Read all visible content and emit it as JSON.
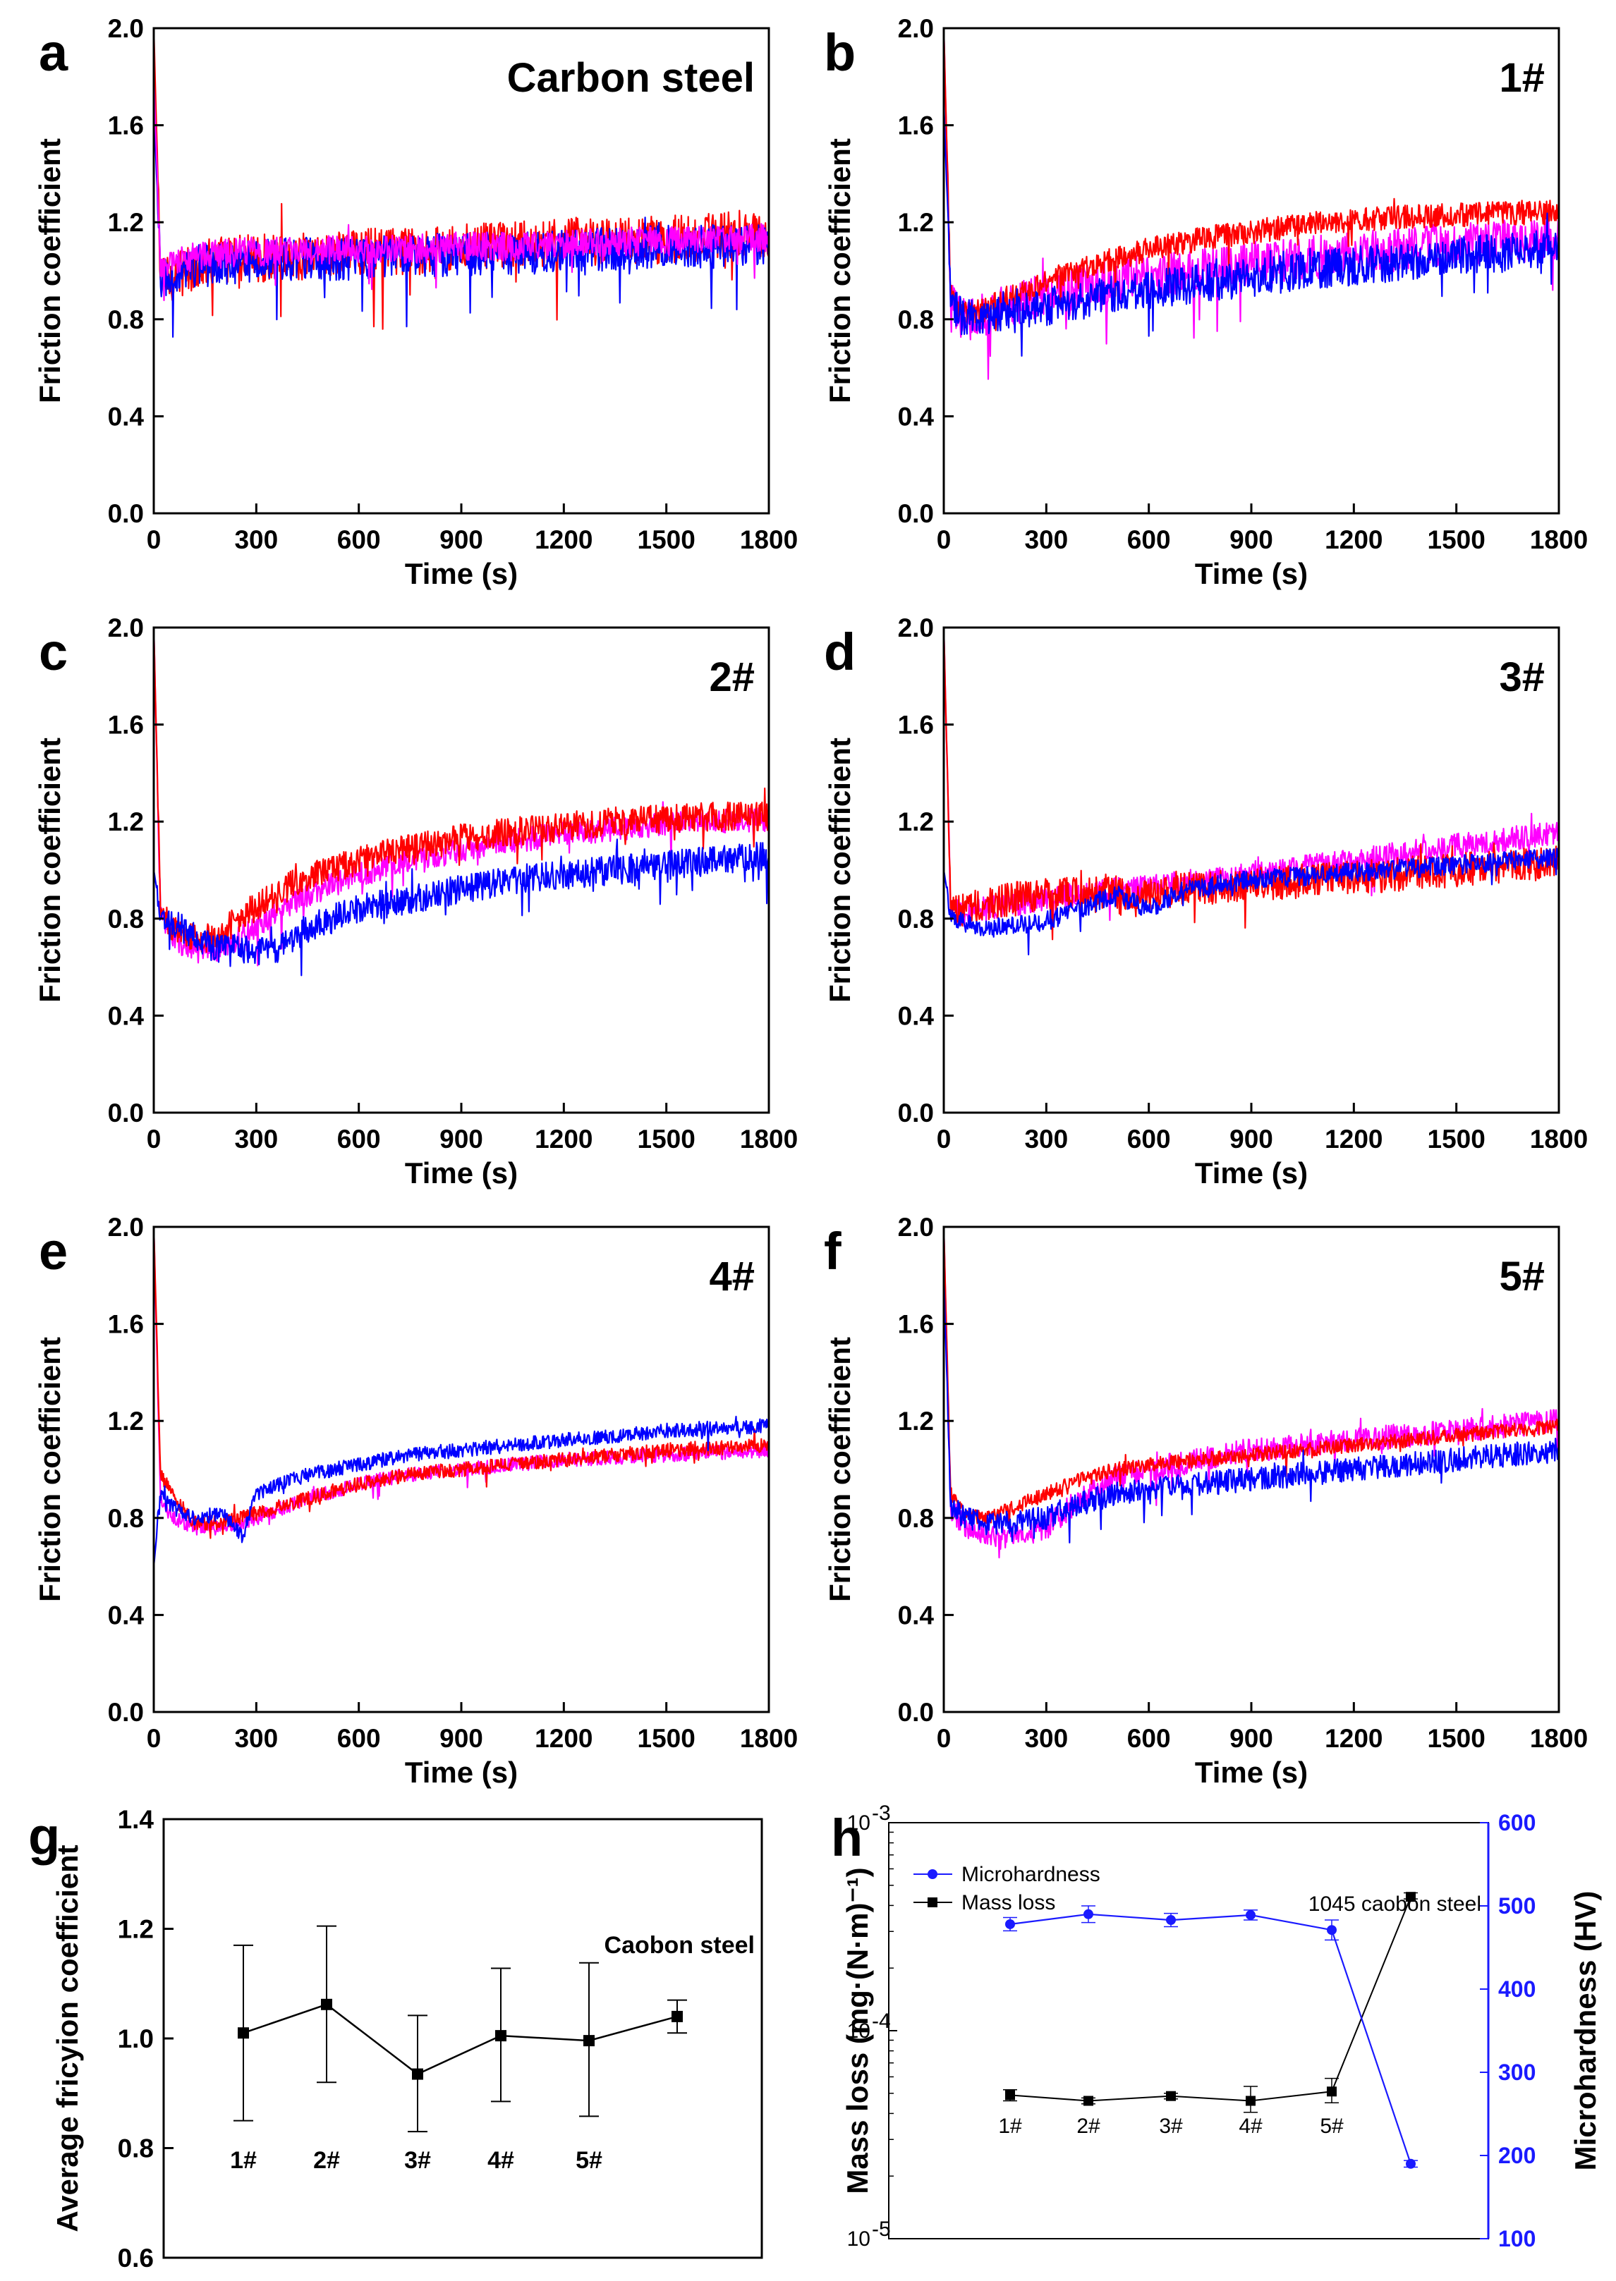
{
  "chart_data": [
    {
      "id": "a",
      "type": "line",
      "panel_label": "a",
      "sample_label": "Carbon steel",
      "xlabel": "Time (s)",
      "ylabel": "Friction coefficient",
      "xlim": [
        0,
        1800
      ],
      "ylim": [
        0,
        2.0
      ],
      "xticks": [
        "0",
        "300",
        "600",
        "900",
        "1200",
        "1500",
        "1800"
      ],
      "yticks": [
        "0.0",
        "0.4",
        "0.8",
        "1.2",
        "1.6",
        "2.0"
      ],
      "series": [
        {
          "color": "#ff0000",
          "x": [
            0,
            20,
            60,
            120,
            200,
            300,
            450,
            600,
            750,
            900,
            1050,
            1200,
            1350,
            1500,
            1650,
            1800
          ],
          "y": [
            2.0,
            0.95,
            0.98,
            1.02,
            1.05,
            1.05,
            1.06,
            1.08,
            1.08,
            1.1,
            1.1,
            1.12,
            1.12,
            1.13,
            1.14,
            1.16
          ],
          "noise": 0.1
        },
        {
          "color": "#0000ff",
          "x": [
            0,
            20,
            60,
            120,
            200,
            300,
            450,
            600,
            750,
            900,
            1050,
            1200,
            1350,
            1500,
            1650,
            1800
          ],
          "y": [
            1.7,
            0.95,
            1.0,
            1.02,
            1.03,
            1.04,
            1.05,
            1.05,
            1.06,
            1.07,
            1.07,
            1.08,
            1.09,
            1.1,
            1.1,
            1.1
          ],
          "noise": 0.09
        },
        {
          "color": "#ff00ff",
          "x": [
            0,
            20,
            60,
            120,
            200,
            300,
            450,
            600,
            750,
            900,
            1050,
            1200,
            1350,
            1500,
            1650,
            1800
          ],
          "y": [
            1.8,
            1.0,
            1.04,
            1.06,
            1.07,
            1.08,
            1.08,
            1.09,
            1.09,
            1.1,
            1.1,
            1.11,
            1.12,
            1.12,
            1.13,
            1.14
          ],
          "noise": 0.06
        }
      ]
    },
    {
      "id": "b",
      "type": "line",
      "panel_label": "b",
      "sample_label": "1#",
      "xlabel": "Time (s)",
      "ylabel": "Friction coefficient",
      "xlim": [
        0,
        1800
      ],
      "ylim": [
        0,
        2.0
      ],
      "xticks": [
        "0",
        "300",
        "600",
        "900",
        "1200",
        "1500",
        "1800"
      ],
      "yticks": [
        "0.0",
        "0.4",
        "0.8",
        "1.2",
        "1.6",
        "2.0"
      ],
      "series": [
        {
          "color": "#ff00ff",
          "x": [
            0,
            20,
            60,
            120,
            200,
            300,
            450,
            600,
            750,
            900,
            1050,
            1200,
            1350,
            1500,
            1650,
            1800
          ],
          "y": [
            2.0,
            0.86,
            0.8,
            0.82,
            0.86,
            0.9,
            0.95,
            0.98,
            1.0,
            1.03,
            1.05,
            1.07,
            1.09,
            1.11,
            1.12,
            1.13
          ],
          "noise": 0.09
        },
        {
          "color": "#ff0000",
          "x": [
            0,
            20,
            60,
            120,
            200,
            300,
            450,
            600,
            750,
            900,
            1050,
            1200,
            1350,
            1500,
            1650,
            1800
          ],
          "y": [
            2.0,
            0.9,
            0.82,
            0.84,
            0.9,
            0.96,
            1.03,
            1.09,
            1.13,
            1.16,
            1.19,
            1.21,
            1.22,
            1.23,
            1.24,
            1.24
          ],
          "noise": 0.05
        },
        {
          "color": "#0000ff",
          "x": [
            0,
            20,
            60,
            120,
            200,
            300,
            450,
            600,
            750,
            900,
            1050,
            1200,
            1350,
            1500,
            1650,
            1800
          ],
          "y": [
            1.7,
            0.88,
            0.8,
            0.8,
            0.82,
            0.85,
            0.89,
            0.92,
            0.95,
            0.97,
            1.0,
            1.02,
            1.04,
            1.06,
            1.08,
            1.1
          ],
          "noise": 0.08
        }
      ]
    },
    {
      "id": "c",
      "type": "line",
      "panel_label": "c",
      "sample_label": "2#",
      "xlabel": "Time (s)",
      "ylabel": "Friction coefficient",
      "xlim": [
        0,
        1800
      ],
      "ylim": [
        0,
        2.0
      ],
      "xticks": [
        "0",
        "300",
        "600",
        "900",
        "1200",
        "1500",
        "1800"
      ],
      "yticks": [
        "0.0",
        "0.4",
        "0.8",
        "1.2",
        "1.6",
        "2.0"
      ],
      "series": [
        {
          "color": "#ff00ff",
          "x": [
            0,
            20,
            60,
            120,
            180,
            250,
            350,
            450,
            600,
            750,
            900,
            1050,
            1200,
            1350,
            1500,
            1650,
            1800
          ],
          "y": [
            2.0,
            0.8,
            0.72,
            0.66,
            0.66,
            0.72,
            0.82,
            0.9,
            0.98,
            1.04,
            1.08,
            1.12,
            1.15,
            1.17,
            1.19,
            1.2,
            1.21
          ],
          "noise": 0.05
        },
        {
          "color": "#ff0000",
          "x": [
            0,
            20,
            60,
            120,
            180,
            250,
            350,
            450,
            600,
            750,
            900,
            1050,
            1200,
            1350,
            1500,
            1650,
            1800
          ],
          "y": [
            2.0,
            0.82,
            0.76,
            0.72,
            0.72,
            0.8,
            0.9,
            0.97,
            1.04,
            1.09,
            1.13,
            1.16,
            1.18,
            1.2,
            1.21,
            1.22,
            1.22
          ],
          "noise": 0.06
        },
        {
          "color": "#0000ff",
          "x": [
            0,
            20,
            60,
            120,
            180,
            250,
            350,
            450,
            600,
            750,
            900,
            1050,
            1200,
            1350,
            1500,
            1650,
            1800
          ],
          "y": [
            1.0,
            0.82,
            0.78,
            0.72,
            0.68,
            0.68,
            0.66,
            0.76,
            0.84,
            0.88,
            0.92,
            0.96,
            0.98,
            1.0,
            1.02,
            1.04,
            1.06
          ],
          "noise": 0.06
        }
      ]
    },
    {
      "id": "d",
      "type": "line",
      "panel_label": "d",
      "sample_label": "3#",
      "xlabel": "Time (s)",
      "ylabel": "Friction coefficient",
      "xlim": [
        0,
        1800
      ],
      "ylim": [
        0,
        2.0
      ],
      "xticks": [
        "0",
        "300",
        "600",
        "900",
        "1200",
        "1500",
        "1800"
      ],
      "yticks": [
        "0.0",
        "0.4",
        "0.8",
        "1.2",
        "1.6",
        "2.0"
      ],
      "series": [
        {
          "color": "#ff00ff",
          "x": [
            0,
            20,
            60,
            120,
            200,
            300,
            400,
            500,
            600,
            700,
            900,
            1100,
            1300,
            1500,
            1650,
            1800
          ],
          "y": [
            2.0,
            0.84,
            0.82,
            0.84,
            0.86,
            0.88,
            0.9,
            0.92,
            0.93,
            0.95,
            0.98,
            1.02,
            1.06,
            1.1,
            1.13,
            1.15
          ],
          "noise": 0.05
        },
        {
          "color": "#ff0000",
          "x": [
            0,
            20,
            60,
            120,
            200,
            300,
            400,
            500,
            600,
            700,
            900,
            1100,
            1300,
            1500,
            1650,
            1800
          ],
          "y": [
            2.0,
            0.84,
            0.84,
            0.86,
            0.88,
            0.9,
            0.9,
            0.91,
            0.9,
            0.92,
            0.94,
            0.96,
            0.98,
            1.0,
            1.02,
            1.03
          ],
          "noise": 0.07
        },
        {
          "color": "#0000ff",
          "x": [
            0,
            20,
            60,
            120,
            200,
            300,
            400,
            500,
            600,
            700,
            900,
            1100,
            1300,
            1500,
            1650,
            1800
          ],
          "y": [
            1.0,
            0.82,
            0.78,
            0.76,
            0.77,
            0.79,
            0.84,
            0.9,
            0.84,
            0.92,
            0.96,
            0.98,
            1.0,
            1.02,
            1.04,
            1.05
          ],
          "noise": 0.04
        }
      ]
    },
    {
      "id": "e",
      "type": "line",
      "panel_label": "e",
      "sample_label": "4#",
      "xlabel": "Time (s)",
      "ylabel": "Friction coefficient",
      "xlim": [
        0,
        1800
      ],
      "ylim": [
        0,
        2.0
      ],
      "xticks": [
        "0",
        "300",
        "600",
        "900",
        "1200",
        "1500",
        "1800"
      ],
      "yticks": [
        "0.0",
        "0.4",
        "0.8",
        "1.2",
        "1.6",
        "2.0"
      ],
      "series": [
        {
          "color": "#ff00ff",
          "x": [
            0,
            20,
            60,
            120,
            200,
            300,
            450,
            600,
            750,
            900,
            1050,
            1200,
            1350,
            1500,
            1650,
            1800
          ],
          "y": [
            2.0,
            0.86,
            0.8,
            0.76,
            0.76,
            0.8,
            0.88,
            0.94,
            0.98,
            1.0,
            1.02,
            1.04,
            1.05,
            1.06,
            1.07,
            1.08
          ],
          "noise": 0.03
        },
        {
          "color": "#ff0000",
          "x": [
            0,
            20,
            60,
            120,
            200,
            300,
            450,
            600,
            750,
            900,
            1050,
            1200,
            1350,
            1500,
            1650,
            1800
          ],
          "y": [
            2.0,
            0.98,
            0.88,
            0.78,
            0.78,
            0.82,
            0.88,
            0.94,
            0.98,
            1.0,
            1.02,
            1.04,
            1.06,
            1.08,
            1.09,
            1.1
          ],
          "noise": 0.03
        },
        {
          "color": "#0000ff",
          "x": [
            0,
            20,
            60,
            120,
            200,
            260,
            300,
            450,
            600,
            750,
            900,
            1050,
            1200,
            1350,
            1500,
            1650,
            1800
          ],
          "y": [
            0.6,
            0.9,
            0.84,
            0.8,
            0.82,
            0.72,
            0.9,
            0.98,
            1.02,
            1.06,
            1.08,
            1.1,
            1.12,
            1.14,
            1.16,
            1.17,
            1.18
          ],
          "noise": 0.03
        }
      ]
    },
    {
      "id": "f",
      "type": "line",
      "panel_label": "f",
      "sample_label": "5#",
      "xlabel": "Time (s)",
      "ylabel": "Friction coefficient",
      "xlim": [
        0,
        1800
      ],
      "ylim": [
        0,
        2.0
      ],
      "xticks": [
        "0",
        "300",
        "600",
        "900",
        "1200",
        "1500",
        "1800"
      ],
      "yticks": [
        "0.0",
        "0.4",
        "0.8",
        "1.2",
        "1.6",
        "2.0"
      ],
      "series": [
        {
          "color": "#ff00ff",
          "x": [
            0,
            20,
            60,
            120,
            200,
            300,
            400,
            500,
            600,
            750,
            900,
            1050,
            1200,
            1350,
            1500,
            1650,
            1800
          ],
          "y": [
            2.0,
            0.84,
            0.76,
            0.72,
            0.72,
            0.76,
            0.88,
            0.96,
            1.0,
            1.04,
            1.08,
            1.1,
            1.12,
            1.14,
            1.16,
            1.18,
            1.2
          ],
          "noise": 0.05
        },
        {
          "color": "#ff0000",
          "x": [
            0,
            20,
            60,
            120,
            200,
            300,
            400,
            500,
            600,
            750,
            900,
            1050,
            1200,
            1350,
            1500,
            1650,
            1800
          ],
          "y": [
            2.0,
            0.9,
            0.82,
            0.8,
            0.84,
            0.9,
            0.96,
            1.0,
            1.02,
            1.04,
            1.06,
            1.08,
            1.1,
            1.12,
            1.14,
            1.16,
            1.18
          ],
          "noise": 0.03
        },
        {
          "color": "#0000ff",
          "x": [
            0,
            20,
            60,
            120,
            200,
            300,
            400,
            500,
            600,
            750,
            900,
            1050,
            1200,
            1350,
            1500,
            1650,
            1800
          ],
          "y": [
            1.8,
            0.86,
            0.8,
            0.78,
            0.78,
            0.8,
            0.86,
            0.9,
            0.92,
            0.94,
            0.96,
            0.98,
            1.0,
            1.02,
            1.04,
            1.06,
            1.08
          ],
          "noise": 0.05
        }
      ]
    },
    {
      "id": "g",
      "type": "line",
      "panel_label": "g",
      "ylabel": "Average fricyion coefficient",
      "ylim": [
        0.6,
        1.4
      ],
      "yticks": [
        "0.6",
        "0.8",
        "1.0",
        "1.2",
        "1.4"
      ],
      "categories": [
        "1#",
        "2#",
        "3#",
        "4#",
        "5#",
        "Caobon steel"
      ],
      "values": [
        1.01,
        1.062,
        0.935,
        1.005,
        0.996,
        1.04
      ],
      "err_low": [
        0.85,
        0.92,
        0.83,
        0.885,
        0.858,
        1.01
      ],
      "err_high": [
        1.17,
        1.205,
        1.042,
        1.128,
        1.138,
        1.07
      ]
    },
    {
      "id": "h",
      "type": "line",
      "panel_label": "h",
      "ylabel": "Mass loss (mg·(N·m)⁻¹)",
      "y2label": "Microhardness (HV)",
      "ylog": true,
      "ylim": [
        1e-05,
        0.001
      ],
      "yticks": [
        "10",
        "10",
        "10"
      ],
      "ytick_exp": [
        "-5",
        "-4",
        "-3"
      ],
      "y2lim": [
        100,
        600
      ],
      "y2ticks": [
        "100",
        "200",
        "300",
        "400",
        "500",
        "600"
      ],
      "categories": [
        "1#",
        "2#",
        "3#",
        "4#",
        "5#",
        "1045 caobon steel"
      ],
      "legend": [
        {
          "label": "Microhardness",
          "color": "#1a1aff",
          "marker": "circle"
        },
        {
          "label": "Mass loss",
          "color": "#000000",
          "marker": "square"
        }
      ],
      "legend_position": "top-left",
      "mass_loss": [
        4.9e-05,
        4.6e-05,
        4.85e-05,
        4.6e-05,
        5.1e-05,
        0.00044
      ],
      "mass_loss_err_low": [
        4.6e-05,
        4.45e-05,
        4.7e-05,
        4.05e-05,
        4.5e-05,
        0.00043
      ],
      "mass_loss_err_high": [
        5.2e-05,
        4.75e-05,
        5e-05,
        5.4e-05,
        5.9e-05,
        0.00046
      ],
      "microhardness": [
        478,
        490,
        483,
        489,
        471,
        190
      ],
      "microhardness_err": [
        8,
        10,
        8,
        6,
        12,
        4
      ]
    }
  ]
}
